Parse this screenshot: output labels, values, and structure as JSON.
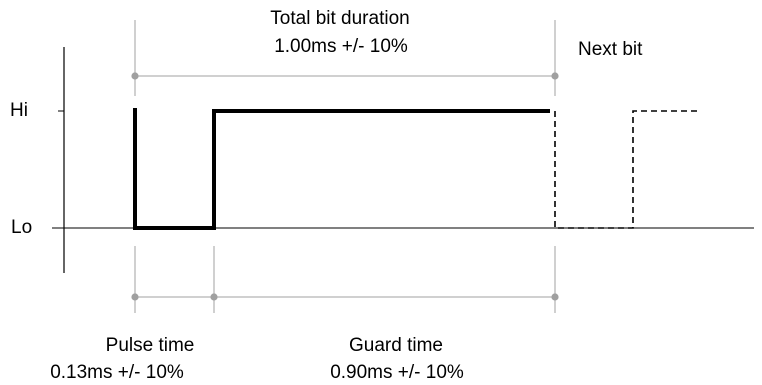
{
  "axis": {
    "hi_label": "Hi",
    "lo_label": "Lo"
  },
  "total": {
    "title": "Total bit duration",
    "value": "1.00ms +/- 10%"
  },
  "next_bit": {
    "label": "Next bit"
  },
  "pulse": {
    "title": "Pulse time",
    "value": "0.13ms +/- 10%"
  },
  "guard": {
    "title": "Guard time",
    "value": "0.90ms +/- 10%"
  },
  "colors": {
    "signal": "#000000",
    "guide": "#a0a0a0",
    "axis": "#000000"
  }
}
